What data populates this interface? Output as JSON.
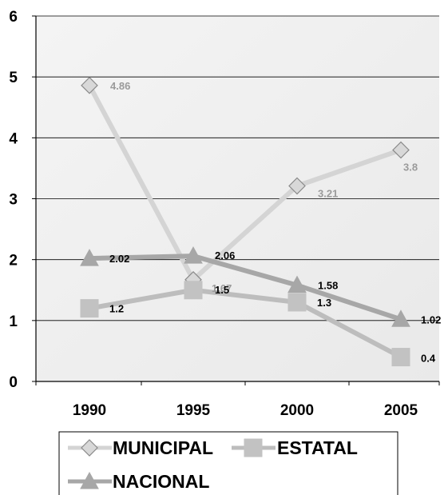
{
  "chart_data": {
    "type": "line",
    "categories": [
      "1990",
      "1995",
      "2000",
      "2005"
    ],
    "ylim": [
      0,
      6
    ],
    "yticks": [
      "0",
      "1",
      "2",
      "3",
      "4",
      "5",
      "6"
    ],
    "grid": true,
    "legend_position": "bottom",
    "series": [
      {
        "name": "MUNICIPAL",
        "values": [
          4.86,
          1.67,
          3.21,
          3.8
        ],
        "labels": [
          "4.86",
          "1.67",
          "3.21",
          "3.8"
        ],
        "marker": "diamond",
        "color": "#d4d4d4",
        "marker_fill": "#d8d8d8",
        "marker_stroke": "#8a8a8a",
        "label_color": "#9a9a9a"
      },
      {
        "name": "ESTATAL",
        "values": [
          1.2,
          1.5,
          1.3,
          0.4
        ],
        "labels": [
          "1.2",
          "1.5",
          "1.3",
          "0.4"
        ],
        "marker": "square",
        "color": "#bdbdbd",
        "marker_fill": "#c2c2c2",
        "marker_stroke": "#c2c2c2",
        "label_color": "#000000"
      },
      {
        "name": "NACIONAL",
        "values": [
          2.02,
          2.06,
          1.58,
          1.02
        ],
        "labels": [
          "2.02",
          "2.06",
          "1.58",
          "1.02"
        ],
        "marker": "triangle",
        "color": "#a7a7a7",
        "marker_fill": "#a7a7a7",
        "marker_stroke": "#a7a7a7",
        "label_color": "#000000"
      }
    ]
  }
}
